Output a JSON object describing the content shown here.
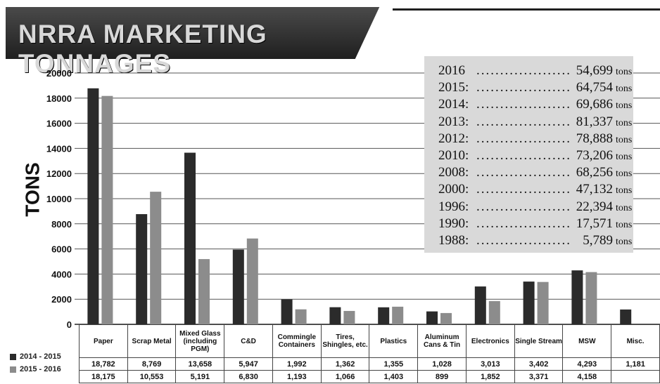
{
  "header": {
    "title": "NRRA MARKETING TONNAGES"
  },
  "history": {
    "unit": "tons",
    "rows": [
      {
        "year": "2016",
        "value": "54,699"
      },
      {
        "year": "2015:",
        "value": "64,754"
      },
      {
        "year": "2014:",
        "value": "69,686"
      },
      {
        "year": "2013:",
        "value": "81,337"
      },
      {
        "year": "2012:",
        "value": "78,888"
      },
      {
        "year": "2010:",
        "value": "73,206"
      },
      {
        "year": "2008:",
        "value": "68,256"
      },
      {
        "year": "2000:",
        "value": "47,132"
      },
      {
        "year": "1996:",
        "value": "22,394"
      },
      {
        "year": "1990:",
        "value": "17,571"
      },
      {
        "year": "1988:",
        "value": "5,789"
      }
    ]
  },
  "table": {
    "rows": [
      {
        "label": "2014 - 2015",
        "values": [
          "18,782",
          "8,769",
          "13,658",
          "5,947",
          "1,992",
          "1,362",
          "1,355",
          "1,028",
          "3,013",
          "3,402",
          "4,293",
          "1,181"
        ]
      },
      {
        "label": "2015 - 2016",
        "values": [
          "18,175",
          "10,553",
          "5,191",
          "6,830",
          "1,193",
          "1,066",
          "1,403",
          "899",
          "1,852",
          "3,371",
          "4,158",
          ""
        ]
      }
    ]
  },
  "chart_data": {
    "type": "bar",
    "title": "NRRA MARKETING TONNAGES",
    "xlabel": "",
    "ylabel": "TONS",
    "ylim": [
      0,
      20000
    ],
    "yticks": [
      "0",
      "2000",
      "4000",
      "6000",
      "8000",
      "10000",
      "12000",
      "14000",
      "16000",
      "18000",
      "20000"
    ],
    "grid": true,
    "legend": "table-bottom-left",
    "categories": [
      "Paper",
      "Scrap Metal",
      "Mixed Glass (including PGM)",
      "C&D",
      "Commingle Containers",
      "Tires, Shingles, etc.",
      "Plastics",
      "Aluminum Cans & Tin",
      "Electronics",
      "Single Stream",
      "MSW",
      "Misc."
    ],
    "series": [
      {
        "name": "2014 - 2015",
        "color": "#2b2b2b",
        "values": [
          18782,
          8769,
          13658,
          5947,
          1992,
          1362,
          1355,
          1028,
          3013,
          3402,
          4293,
          1181
        ]
      },
      {
        "name": "2015 - 2016",
        "color": "#8c8c8c",
        "values": [
          18175,
          10553,
          5191,
          6830,
          1193,
          1066,
          1403,
          899,
          1852,
          3371,
          4158,
          null
        ]
      }
    ]
  }
}
